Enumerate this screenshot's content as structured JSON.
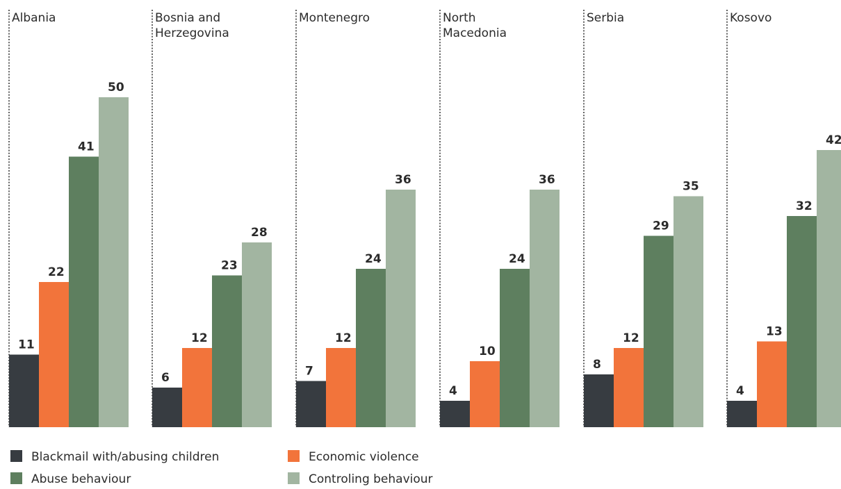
{
  "chart_data": {
    "type": "bar",
    "ylim": [
      0,
      50
    ],
    "categories": [
      "Albania",
      "Bosnia and Herzegovina",
      "Montenegro",
      "North Macedonia",
      "Serbia",
      "Kosovo"
    ],
    "category_display_lines": [
      [
        "Albania"
      ],
      [
        "Bosnia and",
        "Herzegovina"
      ],
      [
        "Montenegro"
      ],
      [
        "North",
        "Macedonia"
      ],
      [
        "Serbia"
      ],
      [
        "Kosovo"
      ]
    ],
    "series": [
      {
        "name": "Blackmail with/abusing children",
        "color": "#373c41",
        "values": [
          11,
          6,
          7,
          4,
          8,
          4
        ]
      },
      {
        "name": "Economic violence",
        "color": "#f2743b",
        "values": [
          22,
          12,
          12,
          10,
          12,
          13
        ]
      },
      {
        "name": "Abuse behaviour",
        "color": "#5e7f5f",
        "values": [
          41,
          23,
          24,
          24,
          29,
          32
        ]
      },
      {
        "name": "Controling behaviour",
        "color": "#a2b5a1",
        "values": [
          50,
          28,
          36,
          36,
          35,
          42
        ]
      }
    ],
    "legend_position": "bottom-left",
    "grid": false
  }
}
